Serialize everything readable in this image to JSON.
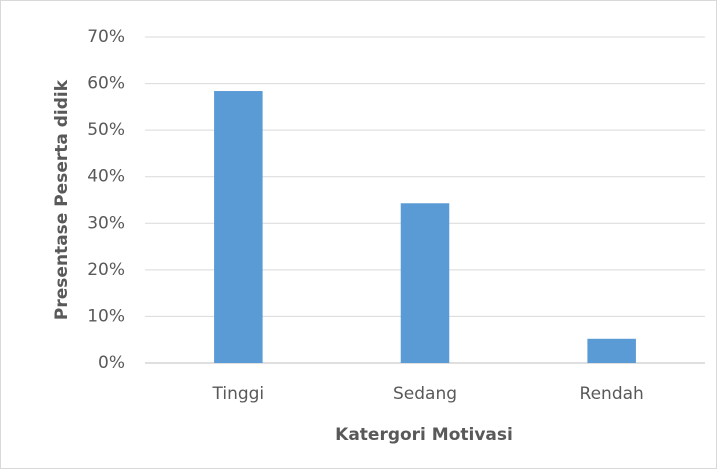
{
  "chart_data": {
    "type": "bar",
    "x_label": "Katergori Motivasi",
    "y_label": "Presentase Peserta didik",
    "categories": [
      "Tinggi",
      "Sedang",
      "Rendah"
    ],
    "values": [
      58.4,
      34.3,
      5.2
    ],
    "color": "#5b9bd5",
    "ylim": [
      0,
      70
    ],
    "yticks": [
      {
        "value": 0,
        "label": "0%"
      },
      {
        "value": 10,
        "label": "10%"
      },
      {
        "value": 20,
        "label": "20%"
      },
      {
        "value": 30,
        "label": "30%"
      },
      {
        "value": 40,
        "label": "40%"
      },
      {
        "value": 50,
        "label": "50%"
      },
      {
        "value": 60,
        "label": "60%"
      },
      {
        "value": 70,
        "label": "70%"
      }
    ],
    "grid": true
  }
}
